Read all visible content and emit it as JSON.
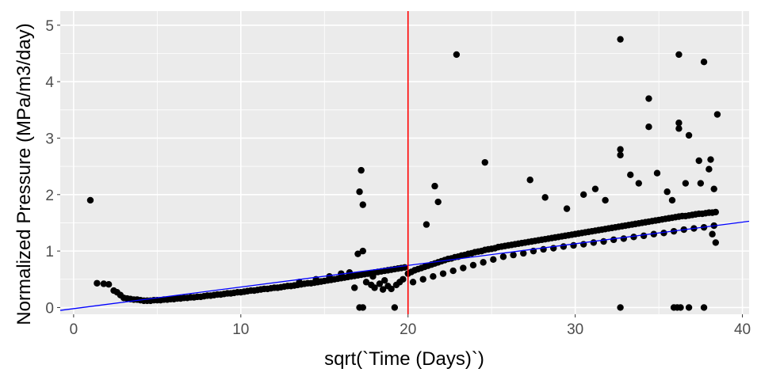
{
  "chart_data": {
    "type": "scatter",
    "title": "",
    "xlabel": "sqrt(`Time (Days)`)",
    "ylabel": "Normalized Pressure (MPa/m3/day)",
    "xlim": [
      -0.8,
      40.4
    ],
    "ylim": [
      -0.12,
      5.25
    ],
    "x_ticks": [
      0,
      10,
      20,
      30,
      40
    ],
    "y_ticks": [
      0,
      1,
      2,
      3,
      4,
      5
    ],
    "x_tick_labels": [
      "0",
      "10",
      "20",
      "30",
      "40"
    ],
    "y_tick_labels": [
      "0",
      "1",
      "2",
      "3",
      "4",
      "5"
    ],
    "grid": true,
    "legend": "none",
    "colors": {
      "panel": "#ebebeb",
      "grid": "#ffffff",
      "points": "#000000",
      "trend": "#0000ff",
      "vline": "#ff0000"
    },
    "trend_line": {
      "slope": 0.0383,
      "intercept": -0.02,
      "color": "#0000ff"
    },
    "vertical_line": {
      "x": 20,
      "color": "#ff0000"
    },
    "points": [
      [
        1.0,
        1.9
      ],
      [
        1.4,
        0.43
      ],
      [
        1.8,
        0.42
      ],
      [
        2.1,
        0.41
      ],
      [
        2.4,
        0.3
      ],
      [
        2.6,
        0.27
      ],
      [
        2.8,
        0.22
      ],
      [
        3.0,
        0.17
      ],
      [
        3.2,
        0.16
      ],
      [
        3.4,
        0.15
      ],
      [
        3.6,
        0.14
      ],
      [
        3.8,
        0.14
      ],
      [
        4.0,
        0.13
      ],
      [
        4.2,
        0.12
      ],
      [
        4.4,
        0.12
      ],
      [
        4.6,
        0.12
      ],
      [
        4.8,
        0.13
      ],
      [
        5.0,
        0.13
      ],
      [
        5.2,
        0.13
      ],
      [
        5.4,
        0.14
      ],
      [
        5.6,
        0.14
      ],
      [
        5.8,
        0.15
      ],
      [
        6.0,
        0.15
      ],
      [
        6.2,
        0.16
      ],
      [
        6.4,
        0.16
      ],
      [
        6.6,
        0.17
      ],
      [
        6.8,
        0.17
      ],
      [
        7.0,
        0.18
      ],
      [
        7.2,
        0.18
      ],
      [
        7.4,
        0.19
      ],
      [
        7.6,
        0.19
      ],
      [
        7.8,
        0.2
      ],
      [
        8.0,
        0.21
      ],
      [
        8.2,
        0.21
      ],
      [
        8.4,
        0.22
      ],
      [
        8.6,
        0.23
      ],
      [
        8.8,
        0.23
      ],
      [
        9.0,
        0.24
      ],
      [
        9.2,
        0.25
      ],
      [
        9.4,
        0.25
      ],
      [
        9.6,
        0.26
      ],
      [
        9.8,
        0.27
      ],
      [
        10.0,
        0.27
      ],
      [
        10.2,
        0.28
      ],
      [
        10.4,
        0.29
      ],
      [
        10.6,
        0.3
      ],
      [
        10.8,
        0.3
      ],
      [
        11.0,
        0.31
      ],
      [
        11.2,
        0.32
      ],
      [
        11.4,
        0.33
      ],
      [
        11.6,
        0.33
      ],
      [
        11.8,
        0.34
      ],
      [
        12.0,
        0.35
      ],
      [
        12.2,
        0.35
      ],
      [
        12.4,
        0.36
      ],
      [
        12.6,
        0.37
      ],
      [
        12.8,
        0.38
      ],
      [
        13.0,
        0.38
      ],
      [
        13.2,
        0.39
      ],
      [
        13.4,
        0.4
      ],
      [
        13.6,
        0.41
      ],
      [
        13.8,
        0.42
      ],
      [
        14.0,
        0.43
      ],
      [
        14.2,
        0.43
      ],
      [
        14.4,
        0.44
      ],
      [
        14.6,
        0.45
      ],
      [
        14.8,
        0.46
      ],
      [
        15.0,
        0.47
      ],
      [
        15.2,
        0.48
      ],
      [
        15.4,
        0.49
      ],
      [
        15.6,
        0.5
      ],
      [
        15.8,
        0.51
      ],
      [
        16.0,
        0.52
      ],
      [
        16.2,
        0.53
      ],
      [
        16.4,
        0.54
      ],
      [
        16.6,
        0.55
      ],
      [
        16.8,
        0.56
      ],
      [
        17.0,
        0.57
      ],
      [
        17.2,
        0.58
      ],
      [
        17.4,
        0.59
      ],
      [
        17.6,
        0.6
      ],
      [
        17.8,
        0.61
      ],
      [
        18.0,
        0.62
      ],
      [
        18.2,
        0.63
      ],
      [
        18.4,
        0.64
      ],
      [
        18.6,
        0.65
      ],
      [
        18.8,
        0.66
      ],
      [
        19.0,
        0.67
      ],
      [
        19.2,
        0.68
      ],
      [
        19.4,
        0.69
      ],
      [
        19.6,
        0.7
      ],
      [
        19.8,
        0.71
      ],
      [
        13.5,
        0.45
      ],
      [
        14.5,
        0.5
      ],
      [
        15.3,
        0.55
      ],
      [
        16.0,
        0.6
      ],
      [
        16.5,
        0.62
      ],
      [
        17.1,
        2.05
      ],
      [
        17.2,
        2.43
      ],
      [
        17.3,
        1.82
      ],
      [
        17.3,
        1.0
      ],
      [
        17.0,
        0.95
      ],
      [
        17.1,
        0.0
      ],
      [
        17.3,
        0.0
      ],
      [
        17.5,
        0.45
      ],
      [
        17.8,
        0.4
      ],
      [
        18.0,
        0.35
      ],
      [
        18.3,
        0.42
      ],
      [
        18.5,
        0.32
      ],
      [
        18.8,
        0.38
      ],
      [
        19.0,
        0.33
      ],
      [
        19.3,
        0.4
      ],
      [
        19.5,
        0.45
      ],
      [
        19.7,
        0.5
      ],
      [
        19.2,
        0.0
      ],
      [
        16.8,
        0.35
      ],
      [
        17.9,
        0.55
      ],
      [
        18.6,
        0.48
      ],
      [
        20.0,
        0.6
      ],
      [
        20.2,
        0.63
      ],
      [
        20.4,
        0.66
      ],
      [
        20.6,
        0.68
      ],
      [
        20.8,
        0.7
      ],
      [
        21.0,
        0.72
      ],
      [
        21.2,
        0.74
      ],
      [
        21.4,
        0.76
      ],
      [
        21.6,
        0.78
      ],
      [
        21.8,
        0.8
      ],
      [
        22.0,
        0.82
      ],
      [
        22.2,
        0.84
      ],
      [
        22.4,
        0.86
      ],
      [
        22.6,
        0.87
      ],
      [
        22.8,
        0.89
      ],
      [
        23.0,
        0.9
      ],
      [
        23.2,
        0.92
      ],
      [
        23.4,
        0.93
      ],
      [
        23.6,
        0.95
      ],
      [
        23.8,
        0.96
      ],
      [
        24.0,
        0.98
      ],
      [
        24.2,
        0.99
      ],
      [
        24.4,
        1.0
      ],
      [
        24.6,
        1.02
      ],
      [
        24.8,
        1.03
      ],
      [
        25.0,
        1.04
      ],
      [
        25.2,
        1.05
      ],
      [
        25.4,
        1.07
      ],
      [
        25.6,
        1.08
      ],
      [
        25.8,
        1.09
      ],
      [
        26.0,
        1.1
      ],
      [
        26.2,
        1.11
      ],
      [
        26.4,
        1.12
      ],
      [
        26.6,
        1.13
      ],
      [
        26.8,
        1.14
      ],
      [
        27.0,
        1.15
      ],
      [
        27.2,
        1.16
      ],
      [
        27.4,
        1.17
      ],
      [
        27.6,
        1.18
      ],
      [
        27.8,
        1.19
      ],
      [
        28.0,
        1.2
      ],
      [
        28.2,
        1.21
      ],
      [
        28.4,
        1.22
      ],
      [
        28.6,
        1.23
      ],
      [
        28.8,
        1.24
      ],
      [
        29.0,
        1.25
      ],
      [
        29.2,
        1.26
      ],
      [
        29.4,
        1.27
      ],
      [
        29.6,
        1.28
      ],
      [
        29.8,
        1.29
      ],
      [
        30.0,
        1.3
      ],
      [
        30.2,
        1.31
      ],
      [
        30.4,
        1.32
      ],
      [
        30.6,
        1.33
      ],
      [
        30.8,
        1.34
      ],
      [
        31.0,
        1.35
      ],
      [
        31.2,
        1.36
      ],
      [
        31.4,
        1.37
      ],
      [
        31.6,
        1.38
      ],
      [
        31.8,
        1.39
      ],
      [
        32.0,
        1.4
      ],
      [
        32.2,
        1.41
      ],
      [
        32.4,
        1.42
      ],
      [
        32.6,
        1.43
      ],
      [
        32.8,
        1.44
      ],
      [
        33.0,
        1.45
      ],
      [
        33.2,
        1.46
      ],
      [
        33.4,
        1.47
      ],
      [
        33.6,
        1.48
      ],
      [
        33.8,
        1.49
      ],
      [
        34.0,
        1.5
      ],
      [
        34.2,
        1.51
      ],
      [
        34.4,
        1.52
      ],
      [
        34.6,
        1.53
      ],
      [
        34.8,
        1.54
      ],
      [
        35.0,
        1.55
      ],
      [
        35.2,
        1.56
      ],
      [
        35.4,
        1.57
      ],
      [
        35.6,
        1.58
      ],
      [
        35.8,
        1.59
      ],
      [
        36.0,
        1.6
      ],
      [
        36.2,
        1.61
      ],
      [
        36.4,
        1.62
      ],
      [
        36.6,
        1.62
      ],
      [
        36.8,
        1.63
      ],
      [
        37.0,
        1.64
      ],
      [
        37.2,
        1.65
      ],
      [
        37.4,
        1.66
      ],
      [
        37.6,
        1.66
      ],
      [
        37.8,
        1.67
      ],
      [
        38.0,
        1.68
      ],
      [
        38.2,
        1.68
      ],
      [
        38.4,
        1.69
      ],
      [
        20.3,
        0.45
      ],
      [
        20.9,
        0.5
      ],
      [
        21.5,
        0.55
      ],
      [
        22.1,
        0.6
      ],
      [
        22.7,
        0.65
      ],
      [
        23.3,
        0.7
      ],
      [
        23.9,
        0.75
      ],
      [
        24.5,
        0.8
      ],
      [
        25.1,
        0.85
      ],
      [
        25.7,
        0.9
      ],
      [
        26.3,
        0.93
      ],
      [
        26.9,
        0.96
      ],
      [
        27.5,
        1.0
      ],
      [
        28.1,
        1.03
      ],
      [
        28.7,
        1.05
      ],
      [
        29.3,
        1.08
      ],
      [
        29.9,
        1.1
      ],
      [
        30.5,
        1.12
      ],
      [
        31.1,
        1.15
      ],
      [
        31.7,
        1.17
      ],
      [
        32.3,
        1.2
      ],
      [
        32.9,
        1.22
      ],
      [
        33.5,
        1.25
      ],
      [
        34.1,
        1.27
      ],
      [
        34.7,
        1.3
      ],
      [
        35.3,
        1.32
      ],
      [
        35.9,
        1.35
      ],
      [
        36.5,
        1.38
      ],
      [
        37.1,
        1.4
      ],
      [
        37.7,
        1.42
      ],
      [
        38.3,
        1.45
      ],
      [
        21.1,
        1.47
      ],
      [
        21.6,
        2.15
      ],
      [
        21.8,
        1.87
      ],
      [
        22.9,
        4.48
      ],
      [
        24.6,
        2.57
      ],
      [
        27.3,
        2.26
      ],
      [
        28.2,
        1.95
      ],
      [
        29.5,
        1.75
      ],
      [
        30.5,
        2.0
      ],
      [
        31.2,
        2.1
      ],
      [
        31.8,
        1.9
      ],
      [
        32.7,
        2.8
      ],
      [
        32.7,
        2.7
      ],
      [
        32.7,
        4.75
      ],
      [
        32.7,
        0.0
      ],
      [
        33.3,
        2.35
      ],
      [
        33.8,
        2.2
      ],
      [
        34.4,
        3.7
      ],
      [
        34.4,
        3.2
      ],
      [
        34.9,
        2.38
      ],
      [
        35.5,
        2.05
      ],
      [
        36.2,
        4.48
      ],
      [
        36.2,
        3.27
      ],
      [
        36.2,
        3.17
      ],
      [
        36.8,
        3.05
      ],
      [
        36.1,
        0.0
      ],
      [
        35.9,
        0.0
      ],
      [
        36.3,
        0.0
      ],
      [
        36.8,
        0.0
      ],
      [
        37.7,
        0.0
      ],
      [
        37.4,
        2.6
      ],
      [
        37.7,
        4.35
      ],
      [
        37.5,
        2.2
      ],
      [
        38.0,
        2.45
      ],
      [
        38.1,
        2.62
      ],
      [
        38.3,
        2.1
      ],
      [
        38.5,
        3.42
      ],
      [
        38.4,
        1.15
      ],
      [
        38.2,
        1.3
      ],
      [
        36.6,
        2.2
      ],
      [
        35.8,
        1.9
      ]
    ]
  }
}
